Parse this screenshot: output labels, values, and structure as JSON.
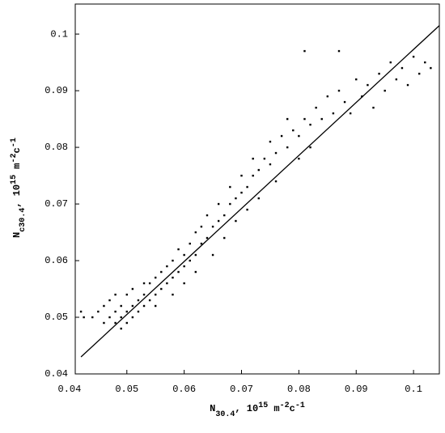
{
  "chart_data": {
    "type": "scatter",
    "x_label_parts": [
      "N",
      "30.4",
      ", 10",
      "15",
      " m",
      "-2",
      "c",
      "-1"
    ],
    "y_label_parts": [
      "N",
      "c30.4",
      ", 10",
      "15",
      " m",
      "-2",
      "c",
      "-1"
    ],
    "xlim": [
      0.041,
      0.1045
    ],
    "ylim": [
      0.04,
      0.1053
    ],
    "xticks": [
      0.04,
      0.05,
      0.06,
      0.07,
      0.08,
      0.09,
      0.1
    ],
    "yticks": [
      0.04,
      0.05,
      0.06,
      0.07,
      0.08,
      0.09,
      0.1
    ],
    "grid": false,
    "color": "#000000",
    "x": [
      0.042,
      0.0425,
      0.044,
      0.045,
      0.046,
      0.046,
      0.047,
      0.047,
      0.048,
      0.048,
      0.048,
      0.049,
      0.049,
      0.049,
      0.05,
      0.05,
      0.05,
      0.051,
      0.051,
      0.051,
      0.052,
      0.052,
      0.053,
      0.053,
      0.053,
      0.054,
      0.054,
      0.055,
      0.055,
      0.055,
      0.056,
      0.056,
      0.057,
      0.057,
      0.058,
      0.058,
      0.058,
      0.059,
      0.059,
      0.06,
      0.06,
      0.06,
      0.061,
      0.061,
      0.062,
      0.062,
      0.062,
      0.063,
      0.063,
      0.064,
      0.064,
      0.065,
      0.065,
      0.066,
      0.066,
      0.067,
      0.067,
      0.068,
      0.068,
      0.069,
      0.069,
      0.07,
      0.07,
      0.071,
      0.071,
      0.072,
      0.072,
      0.073,
      0.073,
      0.074,
      0.075,
      0.075,
      0.076,
      0.076,
      0.077,
      0.078,
      0.078,
      0.079,
      0.08,
      0.08,
      0.081,
      0.082,
      0.082,
      0.083,
      0.084,
      0.085,
      0.086,
      0.087,
      0.088,
      0.089,
      0.09,
      0.091,
      0.092,
      0.093,
      0.094,
      0.095,
      0.096,
      0.097,
      0.098,
      0.099,
      0.1,
      0.101,
      0.102,
      0.103,
      0.081,
      0.087
    ],
    "values": [
      0.051,
      0.05,
      0.05,
      0.051,
      0.049,
      0.052,
      0.05,
      0.053,
      0.049,
      0.051,
      0.054,
      0.05,
      0.052,
      0.048,
      0.051,
      0.049,
      0.054,
      0.05,
      0.052,
      0.055,
      0.051,
      0.053,
      0.052,
      0.054,
      0.056,
      0.053,
      0.056,
      0.054,
      0.057,
      0.052,
      0.055,
      0.058,
      0.056,
      0.059,
      0.057,
      0.06,
      0.054,
      0.058,
      0.062,
      0.059,
      0.061,
      0.056,
      0.06,
      0.063,
      0.061,
      0.065,
      0.058,
      0.063,
      0.066,
      0.064,
      0.068,
      0.066,
      0.061,
      0.067,
      0.07,
      0.068,
      0.064,
      0.07,
      0.073,
      0.071,
      0.067,
      0.072,
      0.075,
      0.073,
      0.069,
      0.075,
      0.078,
      0.076,
      0.071,
      0.078,
      0.077,
      0.081,
      0.079,
      0.074,
      0.082,
      0.08,
      0.085,
      0.083,
      0.082,
      0.078,
      0.085,
      0.084,
      0.08,
      0.087,
      0.085,
      0.089,
      0.086,
      0.09,
      0.088,
      0.086,
      0.092,
      0.089,
      0.091,
      0.087,
      0.093,
      0.09,
      0.095,
      0.092,
      0.094,
      0.091,
      0.096,
      0.093,
      0.095,
      0.094,
      0.097,
      0.097
    ],
    "fit_line": {
      "x": [
        0.042,
        0.1045
      ],
      "y": [
        0.043,
        0.1015
      ]
    }
  }
}
